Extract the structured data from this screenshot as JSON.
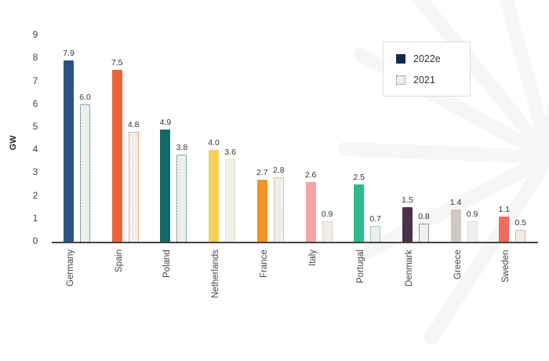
{
  "chart_data": {
    "type": "bar",
    "title": "",
    "xlabel": "",
    "ylabel": "GW",
    "ylim": [
      0,
      9
    ],
    "yticks": [
      0,
      1,
      2,
      3,
      4,
      5,
      6,
      7,
      8,
      9
    ],
    "grid": false,
    "legend_position": "top-right",
    "categories": [
      "Germany",
      "Spain",
      "Poland",
      "Netherlands",
      "France",
      "Italy",
      "Portugal",
      "Denmark",
      "Greece",
      "Sweden"
    ],
    "series": [
      {
        "name": "2022e",
        "values": [
          7.9,
          7.5,
          4.9,
          4.0,
          2.7,
          2.6,
          2.5,
          1.5,
          1.4,
          1.1
        ],
        "style": "solid"
      },
      {
        "name": "2021",
        "values": [
          6.0,
          4.8,
          3.8,
          3.6,
          2.8,
          0.9,
          0.7,
          0.8,
          0.9,
          0.5
        ],
        "style": "dotted-outline"
      }
    ],
    "bar_colors": [
      "#2b5288",
      "#ec6337",
      "#136a64",
      "#f5cf5b",
      "#f39426",
      "#f5a3a6",
      "#2fba88",
      "#4a3248",
      "#cfc9c6",
      "#ee6a5b"
    ],
    "value_labels": {
      "2022e": [
        "7.9",
        "7.5",
        "4.9",
        "4.0",
        "2.7",
        "2.6",
        "2.5",
        "1.5",
        "1.4",
        "1.1"
      ],
      "2021": [
        "6.0",
        "4.8",
        "3.8",
        "3.6",
        "2.8",
        "0.9",
        "0.7",
        "0.8",
        "0.9",
        "0.5"
      ]
    }
  },
  "legend": {
    "items": [
      {
        "label": "2022e",
        "color": "#13294b"
      },
      {
        "label": "2021",
        "color": "#eeeeea"
      }
    ]
  }
}
